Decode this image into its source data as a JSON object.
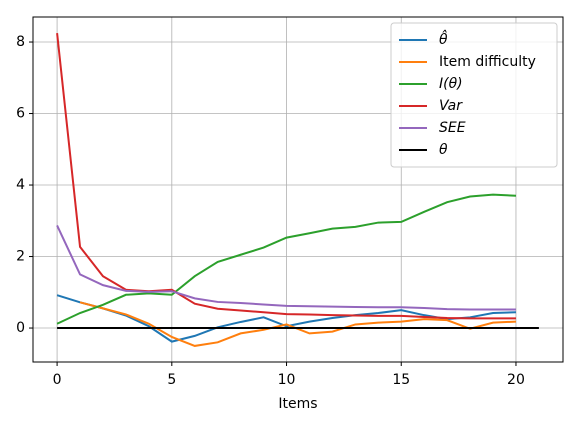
{
  "chart_data": {
    "type": "line",
    "xlabel": "Items",
    "x": [
      0,
      1,
      2,
      3,
      4,
      5,
      6,
      7,
      8,
      9,
      10,
      11,
      12,
      13,
      14,
      15,
      16,
      17,
      18,
      19,
      20
    ],
    "series": [
      {
        "name": "θ̂",
        "color": "#1f77b4",
        "italic": true,
        "values": [
          0.92,
          0.72,
          0.55,
          0.35,
          0.05,
          -0.38,
          -0.22,
          0.02,
          0.17,
          0.3,
          0.05,
          0.18,
          0.28,
          0.36,
          0.42,
          0.5,
          0.36,
          0.25,
          0.3,
          0.42,
          0.44
        ]
      },
      {
        "name": "Item difficulty",
        "color": "#ff7f0e",
        "italic": false,
        "values": [
          null,
          0.72,
          0.55,
          0.38,
          0.12,
          -0.25,
          -0.5,
          -0.4,
          -0.15,
          -0.05,
          0.1,
          -0.15,
          -0.1,
          0.1,
          0.15,
          0.18,
          0.25,
          0.22,
          -0.02,
          0.15,
          0.18
        ]
      },
      {
        "name": "I(θ)",
        "color": "#2ca02c",
        "italic": true,
        "values": [
          0.12,
          0.42,
          0.65,
          0.93,
          0.97,
          0.93,
          1.45,
          1.85,
          2.05,
          2.25,
          2.53,
          2.65,
          2.78,
          2.83,
          2.95,
          2.97,
          3.25,
          3.52,
          3.68,
          3.73,
          3.7
        ]
      },
      {
        "name": "Var",
        "color": "#d62728",
        "italic": true,
        "values": [
          8.25,
          2.27,
          1.45,
          1.07,
          1.03,
          1.07,
          0.68,
          0.54,
          0.49,
          0.44,
          0.39,
          0.38,
          0.36,
          0.35,
          0.34,
          0.34,
          0.31,
          0.28,
          0.27,
          0.27,
          0.27
        ]
      },
      {
        "name": "SEE",
        "color": "#9467bd",
        "italic": true,
        "values": [
          2.87,
          1.5,
          1.2,
          1.04,
          1.01,
          1.03,
          0.83,
          0.73,
          0.7,
          0.66,
          0.62,
          0.61,
          0.6,
          0.59,
          0.58,
          0.58,
          0.56,
          0.53,
          0.52,
          0.52,
          0.52
        ]
      },
      {
        "name": "θ",
        "color": "#000000",
        "italic": true,
        "x": [
          0,
          21
        ],
        "values": [
          0,
          0
        ]
      }
    ],
    "xlim": [
      -1.05,
      22.05
    ],
    "ylim": [
      -0.95,
      8.7
    ],
    "xticks": [
      0,
      5,
      10,
      15,
      20
    ],
    "yticks": [
      0,
      2,
      4,
      6,
      8
    ],
    "grid": true,
    "legend": "upper right"
  }
}
